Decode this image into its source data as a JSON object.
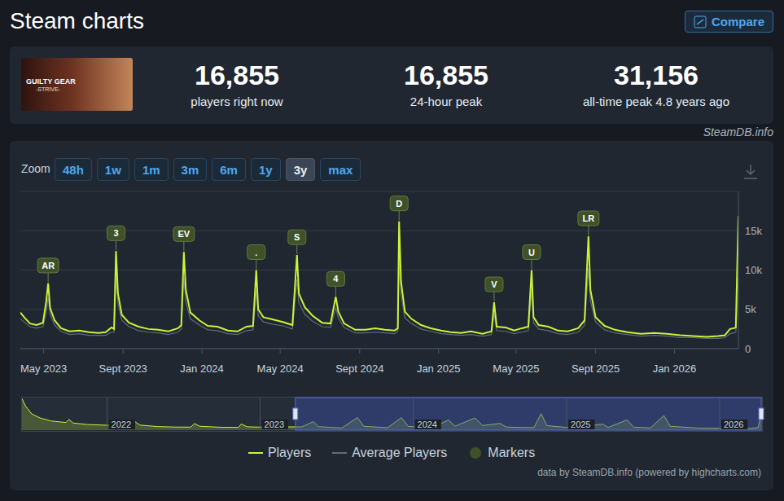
{
  "page": {
    "title": "Steam charts",
    "compare_button": "Compare",
    "thumbnail_text": [
      "GUILTY GEAR",
      "-STRIVE-"
    ],
    "stats": [
      {
        "value": "16,855",
        "label": "players right now"
      },
      {
        "value": "16,855",
        "label": "24-hour peak"
      },
      {
        "value": "31,156",
        "label": "all-time peak 4.8 years ago"
      }
    ],
    "source": "SteamDB.info",
    "zoom_label": "Zoom",
    "zoom_buttons": [
      "48h",
      "1w",
      "1m",
      "3m",
      "6m",
      "1y",
      "3y",
      "max"
    ],
    "zoom_selected": "3y",
    "credit": "data by SteamDB.info (powered by highcharts.com)"
  },
  "chart_data": [
    {
      "type": "line",
      "x": [
        "2023-03-26",
        "2023-04-02",
        "2023-04-10",
        "2023-04-20",
        "2023-04-30",
        "2023-05-05",
        "2023-05-08",
        "2023-05-11",
        "2023-05-18",
        "2023-05-28",
        "2023-06-10",
        "2023-06-25",
        "2023-07-10",
        "2023-07-25",
        "2023-08-05",
        "2023-08-14",
        "2023-08-18",
        "2023-08-21",
        "2023-08-24",
        "2023-08-30",
        "2023-09-10",
        "2023-09-25",
        "2023-10-10",
        "2023-10-25",
        "2023-11-10",
        "2023-11-25",
        "2023-11-30",
        "2023-12-04",
        "2023-12-07",
        "2023-12-14",
        "2023-12-28",
        "2024-01-10",
        "2024-01-25",
        "2024-02-10",
        "2024-02-25",
        "2024-03-10",
        "2024-03-20",
        "2024-03-25",
        "2024-03-28",
        "2024-04-05",
        "2024-04-20",
        "2024-05-05",
        "2024-05-20",
        "2024-05-27",
        "2024-05-30",
        "2024-06-08",
        "2024-06-20",
        "2024-07-05",
        "2024-07-18",
        "2024-07-26",
        "2024-07-30",
        "2024-08-08",
        "2024-08-25",
        "2024-09-10",
        "2024-09-25",
        "2024-10-10",
        "2024-10-25",
        "2024-10-30",
        "2024-11-01",
        "2024-11-04",
        "2024-11-10",
        "2024-11-20",
        "2024-12-05",
        "2024-12-20",
        "2025-01-05",
        "2025-01-20",
        "2025-02-05",
        "2025-02-20",
        "2025-03-10",
        "2025-03-24",
        "2025-03-28",
        "2025-04-01",
        "2025-04-15",
        "2025-04-28",
        "2025-05-10",
        "2025-05-20",
        "2025-05-25",
        "2025-05-28",
        "2025-06-05",
        "2025-06-20",
        "2025-07-05",
        "2025-07-20",
        "2025-08-05",
        "2025-08-15",
        "2025-08-21",
        "2025-08-24",
        "2025-09-01",
        "2025-09-15",
        "2025-10-01",
        "2025-10-20",
        "2025-11-10",
        "2025-12-01",
        "2025-12-20",
        "2026-01-10",
        "2026-01-30",
        "2026-02-20",
        "2026-03-10",
        "2026-03-20",
        "2026-03-28",
        "2026-04-03",
        "2026-04-06",
        "2026-04-10"
      ],
      "series": [
        {
          "name": "Players",
          "color": "#c9f33a",
          "values": [
            4600,
            3900,
            3200,
            3000,
            3300,
            6000,
            8300,
            5200,
            3600,
            2600,
            2200,
            2300,
            2100,
            2000,
            2100,
            2700,
            2500,
            12400,
            7000,
            4300,
            3300,
            2800,
            2500,
            2400,
            2200,
            2600,
            3000,
            12300,
            7500,
            4600,
            3600,
            2900,
            2800,
            2300,
            2200,
            2800,
            2900,
            10000,
            5000,
            4000,
            3700,
            3400,
            3000,
            11900,
            7000,
            5300,
            4200,
            3300,
            3200,
            6600,
            4700,
            3200,
            2400,
            2400,
            2600,
            2400,
            2300,
            2600,
            16200,
            8500,
            4700,
            3800,
            3000,
            2600,
            2300,
            2100,
            2000,
            2200,
            1900,
            2200,
            5900,
            2800,
            2700,
            2300,
            2600,
            2800,
            10000,
            4000,
            3000,
            2800,
            2300,
            2200,
            2600,
            3600,
            14300,
            7500,
            4000,
            2900,
            2400,
            2100,
            1900,
            2000,
            1900,
            1700,
            1600,
            1500,
            1600,
            1700,
            2500,
            2600,
            2700,
            16855
          ]
        },
        {
          "name": "Average Players",
          "color": "#626b77",
          "values": [
            3800,
            3300,
            2800,
            2600,
            2800,
            4600,
            6500,
            4400,
            3000,
            2200,
            1800,
            1900,
            1700,
            1700,
            1700,
            2100,
            2100,
            9000,
            5800,
            3600,
            2800,
            2300,
            2100,
            2000,
            1800,
            2100,
            2500,
            9000,
            6000,
            3800,
            3000,
            2400,
            2300,
            1900,
            1800,
            2300,
            2400,
            7400,
            4200,
            3400,
            3100,
            2900,
            2500,
            8800,
            5800,
            4400,
            3500,
            2800,
            2700,
            5200,
            3900,
            2700,
            2000,
            2000,
            2100,
            2000,
            1900,
            2200,
            11000,
            6800,
            3900,
            3200,
            2500,
            2200,
            1900,
            1800,
            1700,
            1800,
            1600,
            1800,
            4500,
            2300,
            2200,
            1900,
            2100,
            2300,
            7400,
            3300,
            2500,
            2300,
            1900,
            1800,
            2100,
            3000,
            10200,
            6100,
            3400,
            2400,
            2000,
            1800,
            1600,
            1700,
            1600,
            1400,
            1400,
            1300,
            1300,
            1400,
            1900,
            2000,
            2100,
            9000
          ]
        }
      ],
      "xlim": [
        "2023-03-26",
        "2026-04-10"
      ],
      "xticks": [
        {
          "value": "2023-05-01",
          "label": "May 2023"
        },
        {
          "value": "2023-09-01",
          "label": "Sept 2023"
        },
        {
          "value": "2024-01-01",
          "label": "Jan 2024"
        },
        {
          "value": "2024-05-01",
          "label": "May 2024"
        },
        {
          "value": "2024-09-01",
          "label": "Sept 2024"
        },
        {
          "value": "2025-01-01",
          "label": "Jan 2025"
        },
        {
          "value": "2025-05-01",
          "label": "May 2025"
        },
        {
          "value": "2025-09-01",
          "label": "Sept 2025"
        },
        {
          "value": "2026-01-01",
          "label": "Jan 2026"
        }
      ],
      "ylim": [
        0,
        20000
      ],
      "yticks": [
        0,
        {
          "value": 5000,
          "label": "5k"
        },
        {
          "value": 10000,
          "label": "10k"
        },
        {
          "value": 15000,
          "label": "15k"
        }
      ],
      "grid": true,
      "legend": "bottom",
      "markers": {
        "name": "Markers",
        "color": "#3e5128",
        "points": [
          {
            "label": "AR",
            "x": "2023-05-08"
          },
          {
            "label": "3",
            "x": "2023-08-21"
          },
          {
            "label": "EV",
            "x": "2023-12-04"
          },
          {
            "label": ".",
            "x": "2024-03-25"
          },
          {
            "label": "S",
            "x": "2024-05-27"
          },
          {
            "label": "4",
            "x": "2024-07-26"
          },
          {
            "label": "D",
            "x": "2024-11-01"
          },
          {
            "label": "V",
            "x": "2025-03-28"
          },
          {
            "label": "U",
            "x": "2025-05-25"
          },
          {
            "label": "LR",
            "x": "2025-08-21"
          }
        ]
      }
    },
    {
      "type": "area",
      "x": [
        "2021-06-12",
        "2021-06-20",
        "2021-07-05",
        "2021-07-25",
        "2021-08-20",
        "2021-09-25",
        "2021-10-02",
        "2021-10-12",
        "2021-11-15",
        "2021-12-20",
        "2022-01-25",
        "2022-03-01",
        "2022-03-08",
        "2022-03-20",
        "2022-05-01",
        "2022-06-15",
        "2022-07-20",
        "2022-07-28",
        "2022-08-10",
        "2022-10-01",
        "2022-11-10",
        "2022-11-17",
        "2022-12-01",
        "2023-01-15",
        "2023-02-05",
        "2023-02-15",
        "2023-04-10",
        "2023-05-08",
        "2023-05-20",
        "2023-07-15",
        "2023-08-21",
        "2023-09-05",
        "2023-11-01",
        "2023-12-04",
        "2023-12-20",
        "2024-02-15",
        "2024-03-25",
        "2024-04-10",
        "2024-05-27",
        "2024-06-15",
        "2024-07-26",
        "2024-08-10",
        "2024-10-15",
        "2024-11-01",
        "2024-11-15",
        "2025-01-15",
        "2025-03-28",
        "2025-04-10",
        "2025-05-25",
        "2025-06-10",
        "2025-07-20",
        "2025-08-21",
        "2025-09-05",
        "2025-11-15",
        "2026-01-20",
        "2026-03-15",
        "2026-04-03",
        "2026-04-10"
      ],
      "series": [
        {
          "name": "Players",
          "color": "#c9f33a",
          "values": [
            31000,
            24000,
            16000,
            12000,
            9000,
            7500,
            10500,
            7000,
            5500,
            5000,
            4500,
            4200,
            8500,
            5000,
            3500,
            3000,
            3000,
            6500,
            3800,
            2800,
            2700,
            6000,
            3300,
            2800,
            5500,
            3200,
            3200,
            8300,
            3400,
            2100,
            12400,
            3800,
            2400,
            12300,
            3800,
            2300,
            10000,
            3900,
            11900,
            4500,
            6600,
            3000,
            2400,
            16200,
            4400,
            2200,
            5900,
            2700,
            10000,
            2900,
            2200,
            14300,
            3800,
            1900,
            1700,
            1600,
            2600,
            16855
          ]
        }
      ],
      "xlim": [
        "2021-06-12",
        "2026-04-10"
      ],
      "xticks": [
        {
          "value": "2022-01-01",
          "label": "2022"
        },
        {
          "value": "2023-01-01",
          "label": "2023"
        },
        {
          "value": "2024-01-01",
          "label": "2024"
        },
        {
          "value": "2025-01-01",
          "label": "2025"
        },
        {
          "value": "2026-01-01",
          "label": "2026"
        }
      ],
      "ylim": [
        0,
        32000
      ],
      "tick_labels": "x"
    }
  ]
}
